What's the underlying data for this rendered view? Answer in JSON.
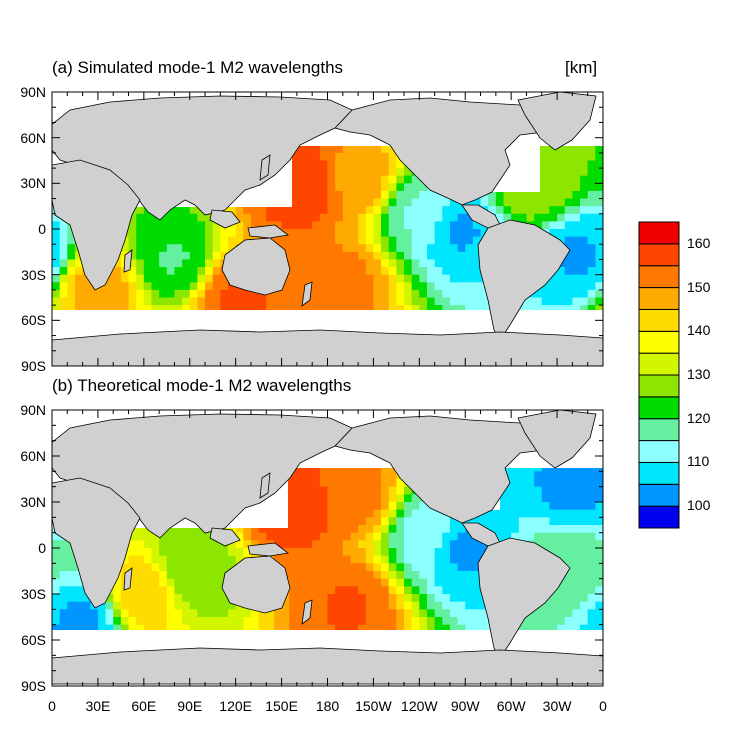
{
  "panels": [
    {
      "title": "(a) Simulated mode-1 M2 wavelengths",
      "unit": "[km]"
    },
    {
      "title": "(b) Theoretical mode-1 M2 wavelengths"
    }
  ],
  "colors": {
    "land": "#d0d0d0",
    "frame": "#000000",
    "levels": [
      "#0000ee",
      "#0096ff",
      "#00e6ff",
      "#8cffff",
      "#64f0a0",
      "#00dc00",
      "#8ce600",
      "#d2f500",
      "#ffff00",
      "#ffdc00",
      "#ffaa00",
      "#ff7800",
      "#ff4600",
      "#f00000"
    ]
  },
  "chart_data": {
    "type": "heatmap",
    "variable": "mode-1 M2 wavelength",
    "unit": "km",
    "xlim": [
      0,
      360
    ],
    "ylim": [
      -90,
      90
    ],
    "x_ticks": [
      "0",
      "30E",
      "60E",
      "90E",
      "120E",
      "150E",
      "180",
      "150W",
      "120W",
      "90W",
      "60W",
      "30W",
      "0"
    ],
    "y_ticks": [
      "90N",
      "60N",
      "30N",
      "0",
      "30S",
      "60S",
      "90S"
    ],
    "colorbar": {
      "levels": [
        95,
        100,
        105,
        110,
        115,
        120,
        125,
        130,
        135,
        140,
        145,
        150,
        155,
        160,
        165
      ],
      "labels": [
        "100",
        "110",
        "120",
        "130",
        "140",
        "150",
        "160"
      ],
      "label_values": [
        100,
        110,
        120,
        130,
        140,
        150,
        160
      ]
    },
    "fields": [
      {
        "panel": "a",
        "base": 130,
        "features": [
          {
            "lon": 165,
            "lat": 28,
            "value": 163
          },
          {
            "lon": 200,
            "lat": 32,
            "value": 152
          },
          {
            "lon": 265,
            "lat": 0,
            "value": 100
          },
          {
            "lon": 240,
            "lat": 10,
            "value": 112
          },
          {
            "lon": 190,
            "lat": -35,
            "value": 155
          },
          {
            "lon": 120,
            "lat": -45,
            "value": 160
          },
          {
            "lon": 80,
            "lat": -20,
            "value": 118
          },
          {
            "lon": 30,
            "lat": -40,
            "value": 150
          },
          {
            "lon": 345,
            "lat": -18,
            "value": 100
          },
          {
            "lon": 315,
            "lat": 30,
            "value": 128
          }
        ]
      },
      {
        "panel": "b",
        "base": 128,
        "features": [
          {
            "lon": 160,
            "lat": 28,
            "value": 163
          },
          {
            "lon": 200,
            "lat": 35,
            "value": 156
          },
          {
            "lon": 270,
            "lat": 0,
            "value": 100
          },
          {
            "lon": 245,
            "lat": 10,
            "value": 110
          },
          {
            "lon": 195,
            "lat": -38,
            "value": 160
          },
          {
            "lon": 60,
            "lat": -30,
            "value": 148
          },
          {
            "lon": 90,
            "lat": -15,
            "value": 125
          },
          {
            "lon": 340,
            "lat": 38,
            "value": 100
          },
          {
            "lon": 335,
            "lat": -10,
            "value": 118
          },
          {
            "lon": 20,
            "lat": -48,
            "value": 100
          }
        ]
      }
    ]
  }
}
